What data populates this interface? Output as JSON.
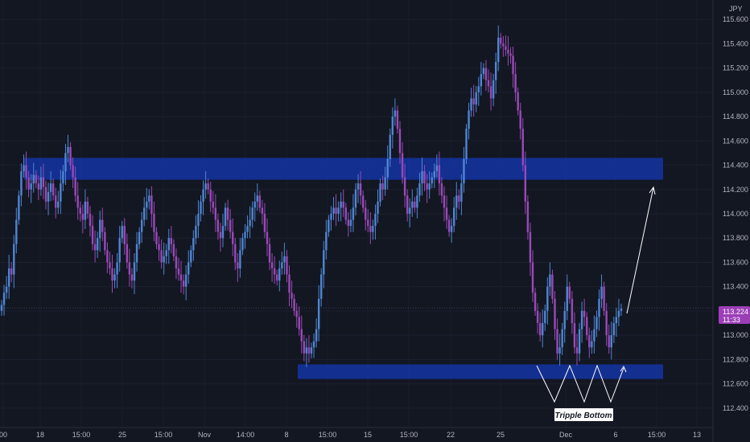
{
  "chart_data": {
    "type": "candlestick",
    "currency": "JPY",
    "ylim": [
      112.24,
      115.76
    ],
    "y_ticks": [
      "115.600",
      "115.400",
      "115.200",
      "115.000",
      "114.800",
      "114.600",
      "114.400",
      "114.200",
      "114.000",
      "113.800",
      "113.600",
      "113.400",
      "113.200",
      "113.000",
      "112.800",
      "112.600",
      "112.400"
    ],
    "x_ticks": [
      "00",
      "18",
      "15:00",
      "25",
      "15:00",
      "Nov",
      "14:00",
      "8",
      "15:00",
      "15",
      "15:00",
      "22",
      "25",
      "Dec",
      "6",
      "15:00",
      "13"
    ],
    "current_price": "113.224",
    "countdown": "11:33",
    "zones": [
      {
        "name": "resistance",
        "low": 114.28,
        "high": 114.46
      },
      {
        "name": "support",
        "low": 112.64,
        "high": 112.76
      }
    ],
    "annotation": "Tripple Bottom",
    "colors": {
      "bg": "#131722",
      "up": "#4f86d3",
      "down": "#9a49b7",
      "zone": "#14329a",
      "badge": "#9c3fb7",
      "grid": "#2a2e39",
      "text": "#b2b5be"
    },
    "closes": [
      113.25,
      113.35,
      113.4,
      113.55,
      113.5,
      113.75,
      113.95,
      114.15,
      114.35,
      114.4,
      114.3,
      114.2,
      114.25,
      114.32,
      114.25,
      114.2,
      114.3,
      114.22,
      114.1,
      114.18,
      114.25,
      114.15,
      114.05,
      114.1,
      114.25,
      114.35,
      114.5,
      114.55,
      114.4,
      114.3,
      114.15,
      114.05,
      114.0,
      113.95,
      114.1,
      114.0,
      113.9,
      113.75,
      113.7,
      113.8,
      113.95,
      113.85,
      113.7,
      113.6,
      113.55,
      113.45,
      113.5,
      113.6,
      113.8,
      113.9,
      113.75,
      113.6,
      113.5,
      113.45,
      113.6,
      113.75,
      113.85,
      113.95,
      114.05,
      114.1,
      114.15,
      114.0,
      113.85,
      113.75,
      113.7,
      113.6,
      113.65,
      113.7,
      113.8,
      113.75,
      113.65,
      113.55,
      113.5,
      113.45,
      113.4,
      113.5,
      113.6,
      113.7,
      113.8,
      113.9,
      114.0,
      114.1,
      114.2,
      114.25,
      114.2,
      114.1,
      114.05,
      113.95,
      113.85,
      113.8,
      113.9,
      114.05,
      113.95,
      113.85,
      113.75,
      113.6,
      113.55,
      113.7,
      113.8,
      113.85,
      113.9,
      113.95,
      114.05,
      114.1,
      114.15,
      114.05,
      114.0,
      113.85,
      113.75,
      113.6,
      113.55,
      113.5,
      113.45,
      113.55,
      113.6,
      113.65,
      113.5,
      113.35,
      113.3,
      113.2,
      113.15,
      113.05,
      112.95,
      112.85,
      112.9,
      112.85,
      112.9,
      112.95,
      113.05,
      113.3,
      113.5,
      113.7,
      113.85,
      113.95,
      114.0,
      114.05,
      114.0,
      114.05,
      114.1,
      114.05,
      113.95,
      113.9,
      113.95,
      114.05,
      114.2,
      114.25,
      114.15,
      114.05,
      113.95,
      113.9,
      113.85,
      113.9,
      114.0,
      114.1,
      114.25,
      114.2,
      114.3,
      114.45,
      114.65,
      114.8,
      114.85,
      114.7,
      114.5,
      114.3,
      114.15,
      114.0,
      114.05,
      114.1,
      114.05,
      114.15,
      114.25,
      114.35,
      114.25,
      114.2,
      114.25,
      114.3,
      114.35,
      114.4,
      114.25,
      114.15,
      114.05,
      113.95,
      113.85,
      113.9,
      114.05,
      114.15,
      114.1,
      114.25,
      114.45,
      114.7,
      114.85,
      114.95,
      114.9,
      115.0,
      115.05,
      115.15,
      115.2,
      115.1,
      115.05,
      114.95,
      115.1,
      115.25,
      115.45,
      115.4,
      115.38,
      115.35,
      115.32,
      115.3,
      115.15,
      115.0,
      114.85,
      114.7,
      114.4,
      114.1,
      113.85,
      113.6,
      113.35,
      113.2,
      113.1,
      113.0,
      113.1,
      113.2,
      113.4,
      113.5,
      113.3,
      113.05,
      112.85,
      112.9,
      113.05,
      113.2,
      113.4,
      113.3,
      113.1,
      112.9,
      112.85,
      113.05,
      113.2,
      113.15,
      113.0,
      112.9,
      112.95,
      113.05,
      113.15,
      113.3,
      113.4,
      113.2,
      113.0,
      112.9,
      113.0,
      113.1,
      113.15,
      113.2,
      113.22
    ],
    "prices_note": "approximate closes read off the candles"
  }
}
